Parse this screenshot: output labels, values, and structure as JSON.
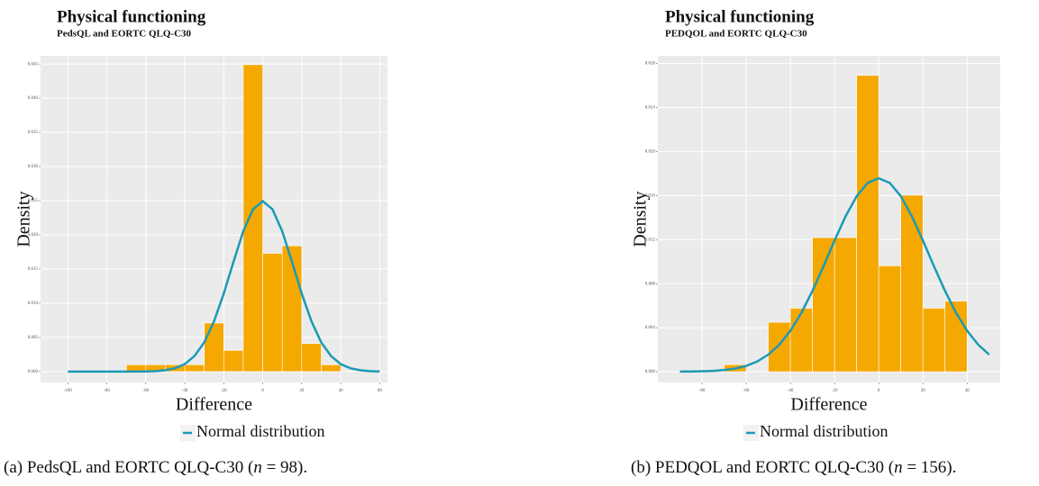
{
  "chart_data": [
    {
      "type": "histogram",
      "title": "Physical functioning",
      "subtitle": "PedsQL and EORTC QLQ-C30",
      "x_label": "Difference",
      "y_label": "Density",
      "bins": [
        -70,
        -60,
        -50,
        -40,
        -30,
        -20,
        -10,
        0,
        10,
        20,
        30,
        40
      ],
      "values": [
        0.001,
        0.001,
        0.001,
        0.001,
        0.0071,
        0.0031,
        0.0449,
        0.0173,
        0.0184,
        0.0041,
        0.001
      ],
      "color": "#f5a800",
      "curve": {
        "type": "line",
        "name": "Normal distribution",
        "color": "#1b9ab6",
        "x": [
          -100,
          -95,
          -90,
          -85,
          -80,
          -75,
          -70,
          -65,
          -60,
          -55,
          -50,
          -45,
          -40,
          -35,
          -30,
          -25,
          -20,
          -15,
          -10,
          -5,
          0,
          5,
          10,
          15,
          20,
          25,
          30,
          35,
          40,
          45,
          50,
          55,
          60
        ],
        "values": [
          0,
          0,
          0,
          0,
          0,
          0,
          0,
          1e-05,
          2e-05,
          7e-05,
          0.00019,
          0.00048,
          0.00109,
          0.00228,
          0.00428,
          0.00735,
          0.01141,
          0.01606,
          0.02052,
          0.02374,
          0.02493,
          0.02374,
          0.02052,
          0.01606,
          0.01141,
          0.00735,
          0.00428,
          0.00228,
          0.00109,
          0.00048,
          0.00019,
          7e-05,
          2e-05
        ]
      },
      "xlim": [
        -114,
        64
      ],
      "ylim": [
        -0.0016,
        0.0462
      ],
      "xticks": [
        -100,
        -80,
        -60,
        -40,
        -20,
        0,
        20,
        40,
        60
      ],
      "yticks": [
        {
          "value": 0,
          "label": "0.000"
        },
        {
          "value": 0.005,
          "label": "0.005"
        },
        {
          "value": 0.01,
          "label": "0.010"
        },
        {
          "value": 0.015,
          "label": "0.015"
        },
        {
          "value": 0.02,
          "label": "0.020"
        },
        {
          "value": 0.025,
          "label": "0.025"
        },
        {
          "value": 0.03,
          "label": "0.030"
        },
        {
          "value": 0.035,
          "label": "0.035"
        },
        {
          "value": 0.04,
          "label": "0.040"
        },
        {
          "value": 0.045,
          "label": "0.045"
        }
      ],
      "grid": true,
      "legend": "bottom",
      "caption": [
        "(a) PedsQL and EORTC QLQ-C30 (",
        "n",
        " = 98)."
      ]
    },
    {
      "type": "histogram",
      "title": "Physical functioning",
      "subtitle": "PEDQOL and EORTC QLQ-C30",
      "x_label": "Difference",
      "y_label": "Density",
      "bins": [
        -70,
        -60,
        -50,
        -40,
        -30,
        -20,
        -10,
        0,
        10,
        20,
        30,
        40
      ],
      "values": [
        0.00064,
        0,
        0.00449,
        0.00577,
        0.01218,
        0.01218,
        0.02692,
        0.00962,
        0.01603,
        0.00577,
        0.00641
      ],
      "color": "#f5a800",
      "curve": {
        "type": "line",
        "name": "Normal distribution",
        "color": "#1b9ab6",
        "x": [
          -90,
          -85,
          -80,
          -75,
          -70,
          -65,
          -60,
          -55,
          -50,
          -45,
          -40,
          -35,
          -30,
          -25,
          -20,
          -15,
          -10,
          -5,
          0,
          5,
          10,
          15,
          20,
          25,
          30,
          35,
          40,
          45,
          50
        ],
        "values": [
          1e-05,
          2e-05,
          4e-05,
          7e-05,
          0.00015,
          0.00029,
          0.00053,
          0.00093,
          0.00155,
          0.00246,
          0.00372,
          0.00535,
          0.00734,
          0.00958,
          0.01192,
          0.01412,
          0.01594,
          0.01715,
          0.01757,
          0.01715,
          0.01594,
          0.01412,
          0.01192,
          0.00958,
          0.00734,
          0.00535,
          0.00372,
          0.00246,
          0.00155
        ]
      },
      "xlim": [
        -100,
        55
      ],
      "ylim": [
        -0.00098,
        0.0287
      ],
      "xticks": [
        -80,
        -60,
        -40,
        -20,
        0,
        20,
        40
      ],
      "yticks": [
        {
          "value": 0,
          "label": "0.000"
        },
        {
          "value": 0.004,
          "label": "0.004"
        },
        {
          "value": 0.008,
          "label": "0.008"
        },
        {
          "value": 0.012,
          "label": "0.012"
        },
        {
          "value": 0.016,
          "label": "0.016"
        },
        {
          "value": 0.02,
          "label": "0.020"
        },
        {
          "value": 0.024,
          "label": "0.024"
        },
        {
          "value": 0.028,
          "label": "0.028"
        }
      ],
      "grid": true,
      "legend": "bottom",
      "caption": [
        "(b) PEDQOL and EORTC QLQ-C30 (",
        "n",
        " = 156)."
      ]
    }
  ]
}
